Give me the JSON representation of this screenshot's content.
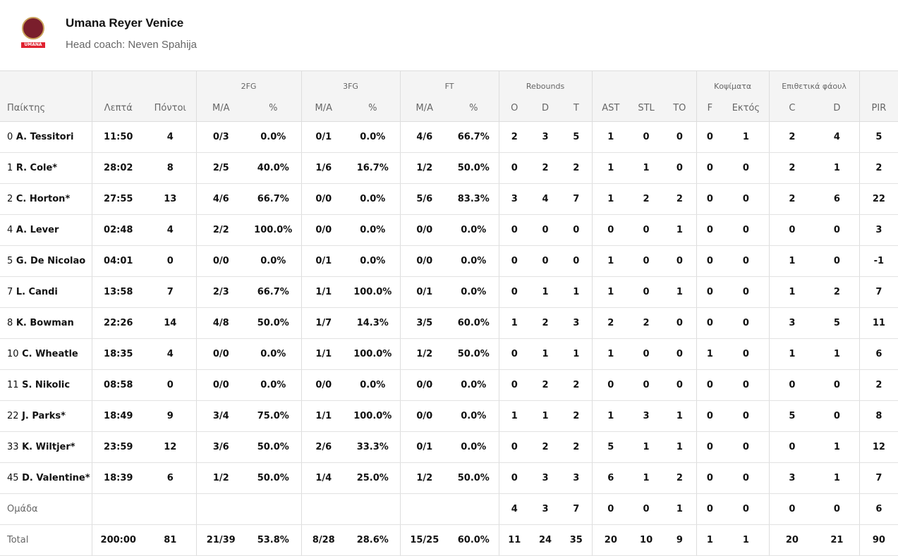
{
  "team": {
    "name": "Umana Reyer Venice",
    "coach": "Head coach: Neven Spahija",
    "logo_text": "UMANA"
  },
  "groups": {
    "fg2": "2FG",
    "fg3": "3FG",
    "ft": "FT",
    "reb": "Rebounds",
    "blk": "Κοψίματα",
    "fouls": "Επιθετικά φάουλ"
  },
  "columns": [
    "Παίκτης",
    "Λεπτά",
    "Πόντοι",
    "M/A",
    "%",
    "M/A",
    "%",
    "M/A",
    "%",
    "O",
    "D",
    "T",
    "AST",
    "STL",
    "TO",
    "F",
    "Εκτός",
    "C",
    "D",
    "PIR"
  ],
  "rows": [
    {
      "num": "0",
      "name": "A. Tessitori",
      "v": [
        "11:50",
        "4",
        "0/3",
        "0.0%",
        "0/1",
        "0.0%",
        "4/6",
        "66.7%",
        "2",
        "3",
        "5",
        "1",
        "0",
        "0",
        "0",
        "1",
        "2",
        "4",
        "5"
      ]
    },
    {
      "num": "1",
      "name": "R. Cole*",
      "v": [
        "28:02",
        "8",
        "2/5",
        "40.0%",
        "1/6",
        "16.7%",
        "1/2",
        "50.0%",
        "0",
        "2",
        "2",
        "1",
        "1",
        "0",
        "0",
        "0",
        "2",
        "1",
        "2"
      ]
    },
    {
      "num": "2",
      "name": "C. Horton*",
      "v": [
        "27:55",
        "13",
        "4/6",
        "66.7%",
        "0/0",
        "0.0%",
        "5/6",
        "83.3%",
        "3",
        "4",
        "7",
        "1",
        "2",
        "2",
        "0",
        "0",
        "2",
        "6",
        "22"
      ]
    },
    {
      "num": "4",
      "name": "A. Lever",
      "v": [
        "02:48",
        "4",
        "2/2",
        "100.0%",
        "0/0",
        "0.0%",
        "0/0",
        "0.0%",
        "0",
        "0",
        "0",
        "0",
        "0",
        "1",
        "0",
        "0",
        "0",
        "0",
        "3"
      ]
    },
    {
      "num": "5",
      "name": "G. De Nicolao",
      "v": [
        "04:01",
        "0",
        "0/0",
        "0.0%",
        "0/1",
        "0.0%",
        "0/0",
        "0.0%",
        "0",
        "0",
        "0",
        "1",
        "0",
        "0",
        "0",
        "0",
        "1",
        "0",
        "-1"
      ]
    },
    {
      "num": "7",
      "name": "L. Candi",
      "v": [
        "13:58",
        "7",
        "2/3",
        "66.7%",
        "1/1",
        "100.0%",
        "0/1",
        "0.0%",
        "0",
        "1",
        "1",
        "1",
        "0",
        "1",
        "0",
        "0",
        "1",
        "2",
        "7"
      ]
    },
    {
      "num": "8",
      "name": "K. Bowman",
      "v": [
        "22:26",
        "14",
        "4/8",
        "50.0%",
        "1/7",
        "14.3%",
        "3/5",
        "60.0%",
        "1",
        "2",
        "3",
        "2",
        "2",
        "0",
        "0",
        "0",
        "3",
        "5",
        "11"
      ]
    },
    {
      "num": "10",
      "name": "C. Wheatle",
      "v": [
        "18:35",
        "4",
        "0/0",
        "0.0%",
        "1/1",
        "100.0%",
        "1/2",
        "50.0%",
        "0",
        "1",
        "1",
        "1",
        "0",
        "0",
        "1",
        "0",
        "1",
        "1",
        "6"
      ]
    },
    {
      "num": "11",
      "name": "S. Nikolic",
      "v": [
        "08:58",
        "0",
        "0/0",
        "0.0%",
        "0/0",
        "0.0%",
        "0/0",
        "0.0%",
        "0",
        "2",
        "2",
        "0",
        "0",
        "0",
        "0",
        "0",
        "0",
        "0",
        "2"
      ]
    },
    {
      "num": "22",
      "name": "J. Parks*",
      "v": [
        "18:49",
        "9",
        "3/4",
        "75.0%",
        "1/1",
        "100.0%",
        "0/0",
        "0.0%",
        "1",
        "1",
        "2",
        "1",
        "3",
        "1",
        "0",
        "0",
        "5",
        "0",
        "8"
      ]
    },
    {
      "num": "33",
      "name": "K. Wiltjer*",
      "v": [
        "23:59",
        "12",
        "3/6",
        "50.0%",
        "2/6",
        "33.3%",
        "0/1",
        "0.0%",
        "0",
        "2",
        "2",
        "5",
        "1",
        "1",
        "0",
        "0",
        "0",
        "1",
        "12"
      ]
    },
    {
      "num": "45",
      "name": "D. Valentine*",
      "v": [
        "18:39",
        "6",
        "1/2",
        "50.0%",
        "1/4",
        "25.0%",
        "1/2",
        "50.0%",
        "0",
        "3",
        "3",
        "6",
        "1",
        "2",
        "0",
        "0",
        "3",
        "1",
        "7"
      ]
    }
  ],
  "team_row": {
    "label": "Ομάδα",
    "v": [
      "",
      "",
      "",
      "",
      "",
      "",
      "",
      "",
      "4",
      "3",
      "7",
      "0",
      "0",
      "1",
      "0",
      "0",
      "0",
      "0",
      "6"
    ]
  },
  "total_row": {
    "label": "Total",
    "v": [
      "200:00",
      "81",
      "21/39",
      "53.8%",
      "8/28",
      "28.6%",
      "15/25",
      "60.0%",
      "11",
      "24",
      "35",
      "20",
      "10",
      "9",
      "1",
      "1",
      "20",
      "21",
      "90"
    ]
  }
}
